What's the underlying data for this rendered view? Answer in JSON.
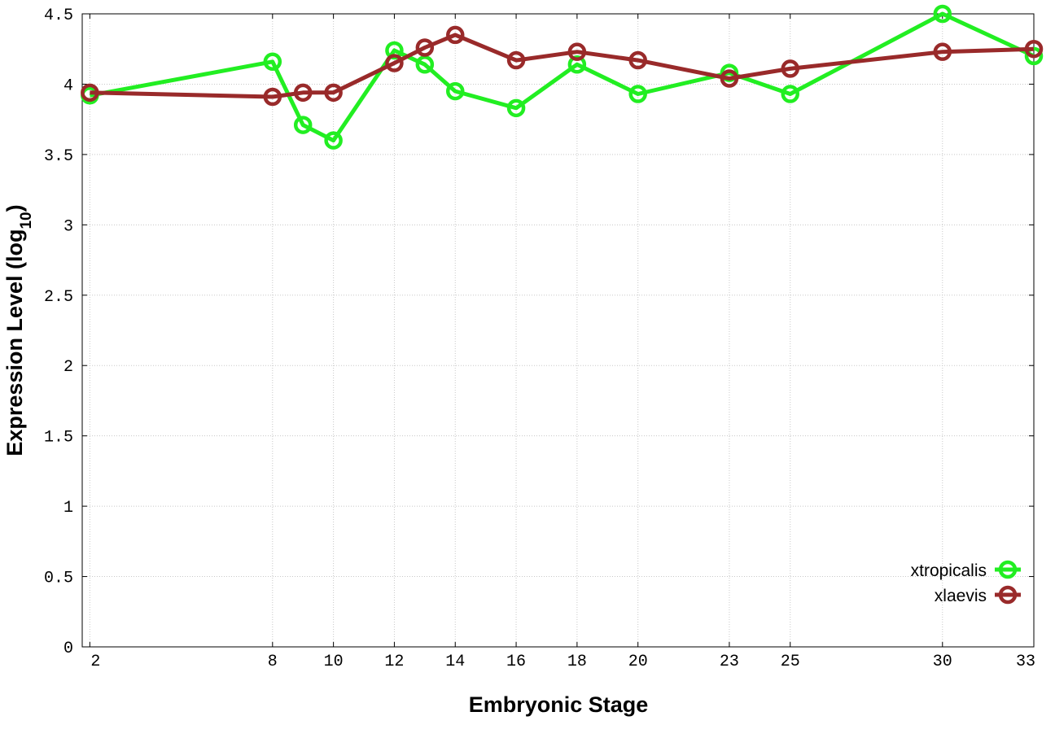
{
  "chart_data": {
    "type": "line",
    "xlabel": "Embryonic Stage",
    "ylabel": "Expression Level (log",
    "ylabel_subscript": "10",
    "ylabel_close": ")",
    "xlim": [
      1.75,
      33
    ],
    "ylim": [
      0,
      4.5
    ],
    "grid": true,
    "legend_position": "bottom-right",
    "x_ticks": [
      2,
      8,
      10,
      12,
      14,
      16,
      18,
      20,
      23,
      25,
      30,
      33
    ],
    "y_ticks": [
      0,
      0.5,
      1,
      1.5,
      2,
      2.5,
      3,
      3.5,
      4,
      4.5
    ],
    "y_tick_labels": [
      "0",
      "0.5",
      "1",
      "1.5",
      "2",
      "2.5",
      "3",
      "3.5",
      "4",
      "4.5"
    ],
    "x": [
      2,
      8,
      9,
      10,
      12,
      13,
      14,
      16,
      18,
      20,
      23,
      25,
      30,
      33
    ],
    "series": [
      {
        "name": "xtropicalis",
        "color": "#22ee22",
        "values": [
          3.92,
          4.16,
          3.71,
          3.6,
          4.24,
          4.14,
          3.95,
          3.83,
          4.14,
          3.93,
          4.08,
          3.93,
          4.5,
          4.2
        ]
      },
      {
        "name": "xlaevis",
        "color": "#992a2a",
        "values": [
          3.94,
          3.91,
          3.94,
          3.94,
          4.15,
          4.26,
          4.35,
          4.17,
          4.23,
          4.17,
          4.04,
          4.11,
          4.23,
          4.25
        ]
      }
    ]
  }
}
